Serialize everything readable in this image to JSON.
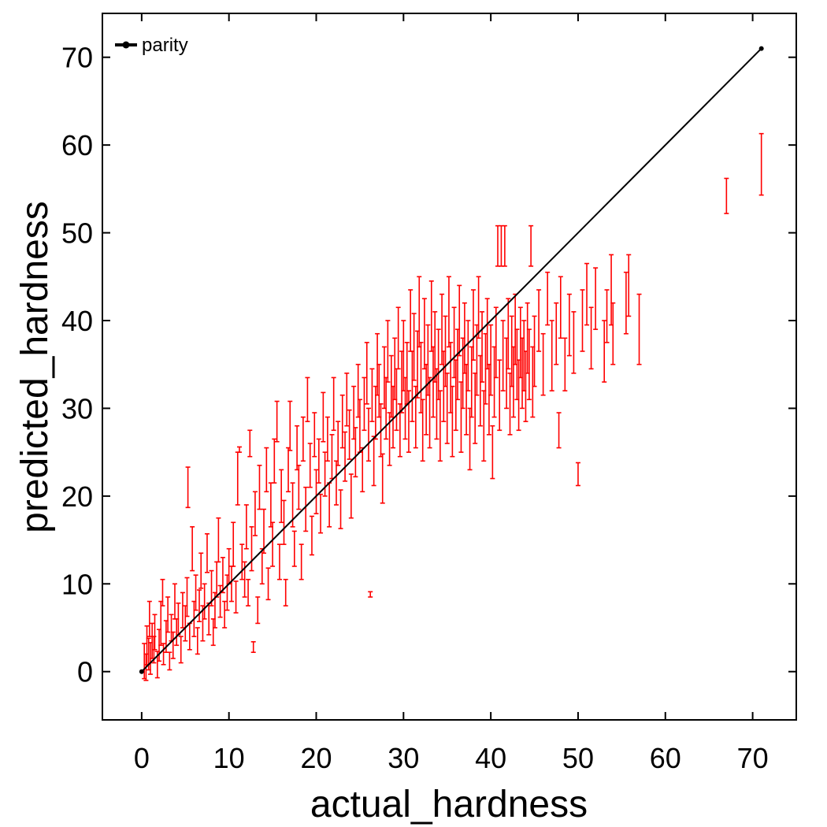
{
  "chart_data": {
    "type": "scatter",
    "title": "",
    "xlabel": "actual_hardness",
    "ylabel": "predicted_hardness",
    "xlim": [
      -4.5,
      75
    ],
    "ylim": [
      -5.5,
      75
    ],
    "xticks": [
      0,
      10,
      20,
      30,
      40,
      50,
      60,
      70
    ],
    "yticks": [
      0,
      10,
      20,
      30,
      40,
      50,
      60,
      70
    ],
    "grid": false,
    "legend": {
      "position": "top-left",
      "entries": [
        "parity"
      ]
    },
    "colors": {
      "errorbars": "#ff0000",
      "parity": "#000000",
      "axes": "#000000"
    },
    "series": [
      {
        "name": "parity",
        "kind": "line",
        "x": [
          0,
          71
        ],
        "y": [
          0,
          71
        ]
      },
      {
        "kind": "errorbar",
        "points": [
          [
            0.3,
            1.2,
            2.0
          ],
          [
            0.5,
            0.5,
            1.5
          ],
          [
            0.6,
            3.0,
            2.2
          ],
          [
            0.8,
            2.0,
            1.8
          ],
          [
            0.9,
            6.0,
            2.0
          ],
          [
            1.0,
            1.5,
            1.8
          ],
          [
            1.2,
            3.5,
            2.0
          ],
          [
            1.4,
            2.5,
            1.5
          ],
          [
            1.5,
            4.5,
            2.0
          ],
          [
            1.8,
            0.8,
            1.5
          ],
          [
            2.0,
            3.0,
            1.8
          ],
          [
            2.2,
            5.5,
            2.5
          ],
          [
            2.4,
            9.0,
            1.5
          ],
          [
            2.5,
            2.0,
            1.2
          ],
          [
            2.8,
            4.0,
            1.8
          ],
          [
            3.0,
            6.5,
            2.0
          ],
          [
            3.2,
            1.2,
            1.0
          ],
          [
            3.4,
            5.0,
            1.5
          ],
          [
            3.6,
            3.0,
            1.5
          ],
          [
            3.8,
            8.0,
            2.0
          ],
          [
            4.0,
            4.5,
            1.5
          ],
          [
            4.2,
            6.0,
            1.8
          ],
          [
            4.5,
            2.5,
            1.5
          ],
          [
            4.7,
            7.0,
            2.0
          ],
          [
            5.0,
            5.5,
            2.0
          ],
          [
            5.2,
            8.5,
            2.2
          ],
          [
            5.3,
            21.0,
            2.3
          ],
          [
            5.5,
            4.0,
            1.5
          ],
          [
            5.8,
            14.0,
            2.5
          ],
          [
            6.0,
            6.0,
            2.0
          ],
          [
            6.2,
            9.0,
            2.0
          ],
          [
            6.4,
            3.5,
            1.5
          ],
          [
            6.6,
            7.5,
            1.8
          ],
          [
            6.8,
            11.5,
            2.0
          ],
          [
            7.0,
            5.5,
            2.0
          ],
          [
            7.2,
            8.0,
            2.0
          ],
          [
            7.5,
            13.5,
            2.2
          ],
          [
            7.7,
            6.0,
            1.8
          ],
          [
            8.0,
            9.5,
            2.0
          ],
          [
            8.2,
            4.5,
            1.5
          ],
          [
            8.4,
            7.0,
            2.0
          ],
          [
            8.6,
            10.5,
            2.0
          ],
          [
            8.8,
            15.0,
            2.5
          ],
          [
            9.0,
            8.0,
            1.8
          ],
          [
            9.3,
            11.0,
            2.0
          ],
          [
            9.5,
            6.5,
            1.5
          ],
          [
            9.8,
            9.0,
            2.0
          ],
          [
            10.0,
            12.0,
            2.0
          ],
          [
            10.3,
            10.0,
            2.0
          ],
          [
            10.5,
            14.5,
            2.5
          ],
          [
            10.8,
            8.5,
            1.8
          ],
          [
            11.0,
            22.0,
            3.0
          ],
          [
            11.2,
            25.3,
            0.3
          ],
          [
            11.5,
            12.5,
            2.0
          ],
          [
            11.8,
            10.5,
            2.0
          ],
          [
            12.0,
            16.5,
            2.5
          ],
          [
            12.2,
            9.0,
            1.5
          ],
          [
            12.4,
            26.0,
            1.5
          ],
          [
            12.6,
            14.0,
            2.5
          ],
          [
            12.8,
            2.8,
            0.6
          ],
          [
            13.0,
            18.0,
            2.5
          ],
          [
            13.3,
            7.0,
            1.5
          ],
          [
            13.5,
            21.0,
            2.5
          ],
          [
            13.8,
            12.0,
            2.0
          ],
          [
            14.0,
            16.0,
            2.5
          ],
          [
            14.3,
            23.0,
            2.5
          ],
          [
            14.5,
            10.0,
            1.8
          ],
          [
            14.8,
            19.0,
            2.5
          ],
          [
            15.0,
            14.5,
            2.5
          ],
          [
            15.2,
            24.0,
            2.5
          ],
          [
            15.5,
            28.5,
            2.3
          ],
          [
            15.8,
            12.5,
            2.0
          ],
          [
            16.0,
            20.0,
            3.0
          ],
          [
            16.3,
            17.0,
            2.5
          ],
          [
            16.5,
            9.0,
            1.5
          ],
          [
            16.8,
            23.0,
            2.5
          ],
          [
            17.0,
            28.0,
            2.8
          ],
          [
            17.3,
            19.0,
            2.5
          ],
          [
            17.5,
            14.0,
            2.0
          ],
          [
            17.8,
            25.5,
            2.5
          ],
          [
            18.0,
            21.0,
            2.5
          ],
          [
            18.3,
            12.5,
            2.0
          ],
          [
            18.5,
            26.5,
            2.5
          ],
          [
            18.8,
            18.5,
            2.5
          ],
          [
            19.0,
            31.0,
            2.5
          ],
          [
            19.3,
            23.5,
            2.5
          ],
          [
            19.5,
            15.5,
            2.2
          ],
          [
            19.8,
            27.0,
            2.5
          ],
          [
            20.0,
            20.5,
            2.5
          ],
          [
            20.3,
            24.0,
            2.5
          ],
          [
            20.5,
            18.0,
            2.2
          ],
          [
            20.8,
            29.0,
            2.8
          ],
          [
            21.0,
            22.5,
            2.5
          ],
          [
            21.3,
            26.5,
            2.5
          ],
          [
            21.5,
            19.0,
            2.5
          ],
          [
            21.8,
            24.5,
            2.5
          ],
          [
            22.0,
            30.5,
            3.0
          ],
          [
            22.3,
            21.5,
            2.5
          ],
          [
            22.5,
            26.0,
            2.5
          ],
          [
            22.8,
            18.5,
            2.2
          ],
          [
            23.0,
            28.5,
            3.0
          ],
          [
            23.3,
            24.5,
            2.8
          ],
          [
            23.5,
            31.0,
            3.0
          ],
          [
            23.8,
            27.0,
            2.8
          ],
          [
            24.0,
            20.0,
            2.5
          ],
          [
            24.3,
            29.5,
            3.0
          ],
          [
            24.5,
            25.0,
            2.8
          ],
          [
            24.8,
            32.0,
            3.0
          ],
          [
            25.0,
            28.0,
            3.0
          ],
          [
            25.3,
            23.0,
            2.5
          ],
          [
            25.5,
            30.5,
            3.0
          ],
          [
            25.8,
            34.0,
            3.5
          ],
          [
            26.0,
            27.0,
            3.0
          ],
          [
            26.2,
            8.8,
            0.3
          ],
          [
            26.4,
            31.5,
            3.0
          ],
          [
            26.6,
            24.0,
            2.8
          ],
          [
            26.8,
            29.5,
            3.0
          ],
          [
            27.0,
            35.0,
            3.5
          ],
          [
            27.2,
            32.0,
            3.0
          ],
          [
            27.4,
            27.5,
            3.0
          ],
          [
            27.6,
            22.0,
            2.8
          ],
          [
            27.8,
            33.5,
            3.5
          ],
          [
            28.0,
            30.0,
            3.5
          ],
          [
            28.2,
            36.5,
            3.5
          ],
          [
            28.4,
            26.5,
            3.0
          ],
          [
            28.6,
            32.5,
            3.5
          ],
          [
            28.8,
            29.0,
            3.5
          ],
          [
            29.0,
            34.5,
            3.5
          ],
          [
            29.2,
            31.0,
            3.5
          ],
          [
            29.4,
            38.0,
            3.5
          ],
          [
            29.6,
            27.5,
            3.0
          ],
          [
            29.8,
            33.0,
            3.5
          ],
          [
            30.0,
            36.0,
            4.0
          ],
          [
            30.2,
            30.0,
            3.5
          ],
          [
            30.4,
            34.0,
            3.5
          ],
          [
            30.6,
            28.5,
            3.5
          ],
          [
            30.8,
            40.0,
            3.5
          ],
          [
            31.0,
            32.5,
            4.0
          ],
          [
            31.2,
            37.0,
            3.8
          ],
          [
            31.4,
            29.0,
            3.5
          ],
          [
            31.6,
            35.0,
            3.8
          ],
          [
            31.8,
            41.0,
            4.0
          ],
          [
            32.0,
            33.5,
            4.0
          ],
          [
            32.2,
            27.5,
            3.5
          ],
          [
            32.4,
            38.5,
            4.0
          ],
          [
            32.6,
            31.0,
            4.0
          ],
          [
            32.8,
            35.5,
            4.0
          ],
          [
            33.0,
            29.5,
            4.0
          ],
          [
            33.2,
            40.5,
            4.0
          ],
          [
            33.4,
            33.0,
            4.0
          ],
          [
            33.6,
            37.0,
            4.0
          ],
          [
            33.8,
            30.5,
            4.0
          ],
          [
            34.0,
            35.0,
            4.0
          ],
          [
            34.2,
            28.0,
            4.0
          ],
          [
            34.4,
            39.0,
            4.0
          ],
          [
            34.6,
            32.5,
            4.0
          ],
          [
            34.8,
            36.5,
            4.0
          ],
          [
            35.0,
            30.0,
            4.0
          ],
          [
            35.2,
            41.0,
            4.0
          ],
          [
            35.4,
            33.5,
            4.0
          ],
          [
            35.6,
            28.5,
            4.0
          ],
          [
            35.8,
            37.5,
            4.0
          ],
          [
            36.0,
            31.5,
            4.0
          ],
          [
            36.2,
            35.0,
            4.0
          ],
          [
            36.4,
            40.0,
            4.0
          ],
          [
            36.6,
            29.0,
            4.0
          ],
          [
            36.8,
            34.0,
            4.0
          ],
          [
            37.0,
            38.0,
            4.0
          ],
          [
            37.2,
            31.0,
            4.0
          ],
          [
            37.4,
            36.0,
            4.0
          ],
          [
            37.6,
            26.5,
            3.5
          ],
          [
            37.8,
            33.0,
            4.0
          ],
          [
            38.0,
            39.5,
            4.0
          ],
          [
            38.2,
            30.0,
            4.0
          ],
          [
            38.4,
            35.5,
            4.0
          ],
          [
            38.6,
            41.5,
            3.5
          ],
          [
            38.8,
            32.0,
            4.0
          ],
          [
            39.0,
            37.0,
            4.0
          ],
          [
            39.2,
            28.0,
            4.0
          ],
          [
            39.4,
            34.5,
            4.0
          ],
          [
            39.6,
            38.5,
            4.0
          ],
          [
            39.8,
            31.0,
            4.0
          ],
          [
            40.0,
            35.5,
            4.0
          ],
          [
            40.2,
            25.0,
            3.0
          ],
          [
            40.4,
            33.0,
            4.0
          ],
          [
            40.6,
            37.5,
            4.0
          ],
          [
            40.8,
            48.5,
            2.3
          ],
          [
            41.0,
            31.5,
            4.0
          ],
          [
            41.2,
            48.5,
            2.3
          ],
          [
            41.4,
            36.0,
            4.0
          ],
          [
            41.6,
            48.5,
            2.3
          ],
          [
            41.8,
            34.0,
            4.0
          ],
          [
            42.0,
            38.5,
            4.0
          ],
          [
            42.2,
            30.5,
            3.5
          ],
          [
            42.4,
            36.5,
            4.0
          ],
          [
            42.6,
            33.0,
            4.0
          ],
          [
            42.8,
            39.0,
            4.0
          ],
          [
            43.0,
            35.0,
            4.0
          ],
          [
            43.2,
            31.5,
            4.0
          ],
          [
            43.4,
            37.5,
            4.0
          ],
          [
            43.6,
            34.0,
            4.0
          ],
          [
            43.8,
            36.0,
            4.0
          ],
          [
            44.0,
            32.5,
            4.0
          ],
          [
            44.2,
            38.0,
            4.0
          ],
          [
            44.4,
            35.0,
            4.0
          ],
          [
            44.6,
            48.5,
            2.3
          ],
          [
            44.8,
            33.0,
            4.0
          ],
          [
            45.0,
            36.5,
            4.0
          ],
          [
            45.5,
            40.0,
            3.5
          ],
          [
            46.0,
            35.0,
            3.5
          ],
          [
            46.5,
            42.5,
            3.0
          ],
          [
            47.0,
            36.0,
            4.0
          ],
          [
            47.5,
            38.5,
            3.5
          ],
          [
            47.8,
            27.5,
            2.0
          ],
          [
            48.0,
            41.5,
            3.5
          ],
          [
            48.5,
            35.0,
            3.0
          ],
          [
            49.0,
            39.5,
            3.5
          ],
          [
            49.5,
            37.5,
            3.5
          ],
          [
            50.0,
            22.5,
            1.3
          ],
          [
            50.5,
            40.0,
            3.5
          ],
          [
            51.0,
            43.0,
            3.5
          ],
          [
            51.5,
            38.0,
            3.5
          ],
          [
            52.0,
            42.5,
            3.5
          ],
          [
            53.0,
            36.5,
            3.5
          ],
          [
            53.3,
            40.5,
            3.0
          ],
          [
            53.8,
            43.5,
            4.0
          ],
          [
            54.0,
            38.5,
            3.5
          ],
          [
            55.5,
            42.0,
            3.5
          ],
          [
            55.8,
            44.0,
            3.5
          ],
          [
            57.0,
            39.0,
            4.0
          ],
          [
            67.0,
            54.2,
            2.0
          ],
          [
            71.0,
            57.8,
            3.5
          ]
        ]
      }
    ]
  }
}
